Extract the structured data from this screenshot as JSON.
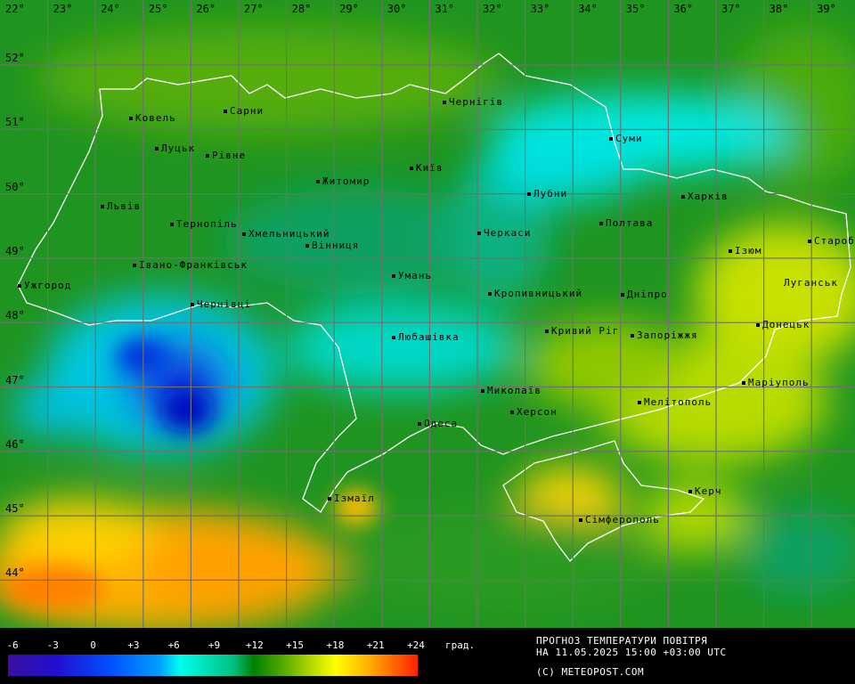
{
  "map": {
    "longitude_labels": [
      "22°",
      "23°",
      "24°",
      "25°",
      "26°",
      "27°",
      "28°",
      "29°",
      "30°",
      "31°",
      "32°",
      "33°",
      "34°",
      "35°",
      "36°",
      "37°",
      "38°",
      "39°"
    ],
    "latitude_labels": [
      "52°",
      "51°",
      "50°",
      "49°",
      "48°",
      "47°",
      "46°",
      "45°",
      "44°"
    ],
    "cities": [
      {
        "name": "Ковель"
      },
      {
        "name": "Сарни"
      },
      {
        "name": "Луцьк"
      },
      {
        "name": "Рівне"
      },
      {
        "name": "Житомир"
      },
      {
        "name": "Київ"
      },
      {
        "name": "Чернігів"
      },
      {
        "name": "Суми"
      },
      {
        "name": "Львів"
      },
      {
        "name": "Тернопіль"
      },
      {
        "name": "Хмельницький"
      },
      {
        "name": "Вінниця"
      },
      {
        "name": "Лубни"
      },
      {
        "name": "Харків"
      },
      {
        "name": "Полтава"
      },
      {
        "name": "Черкаси"
      },
      {
        "name": "Ізюм"
      },
      {
        "name": "Старобільськ"
      },
      {
        "name": "Луганськ"
      },
      {
        "name": "Ужгород"
      },
      {
        "name": "Івано-Франківськ"
      },
      {
        "name": "Умань"
      },
      {
        "name": "Кропивницький"
      },
      {
        "name": "Дніпро"
      },
      {
        "name": "Чернівці"
      },
      {
        "name": "Кривий Ріг"
      },
      {
        "name": "Запоріжжя"
      },
      {
        "name": "Донецьк"
      },
      {
        "name": "Любашівка"
      },
      {
        "name": "Маріуполь"
      },
      {
        "name": "Миколаїв"
      },
      {
        "name": "Херсон"
      },
      {
        "name": "Мелітополь"
      },
      {
        "name": "Одеса"
      },
      {
        "name": "Ізмаїл"
      },
      {
        "name": "Керч"
      },
      {
        "name": "Сімферополь"
      }
    ]
  },
  "legend": {
    "ticks": [
      "-6",
      "-3",
      "0",
      "+3",
      "+6",
      "+9",
      "+12",
      "+15",
      "+18",
      "+21",
      "+24"
    ],
    "unit": "град.",
    "colors": [
      "#3a0fa0",
      "#2010d0",
      "#0050ff",
      "#00a0ff",
      "#00ffee",
      "#00c080",
      "#008000",
      "#60b000",
      "#c0e000",
      "#ffff00",
      "#ffb000",
      "#ff2000"
    ]
  },
  "info": {
    "title": "ПРОГНОЗ ТЕМПЕРАТУРИ ПОВІТРЯ",
    "datetime": "НА 11.05.2025 15:00 +03:00 UTC",
    "copyright": "(C) METEOPOST.COM"
  }
}
